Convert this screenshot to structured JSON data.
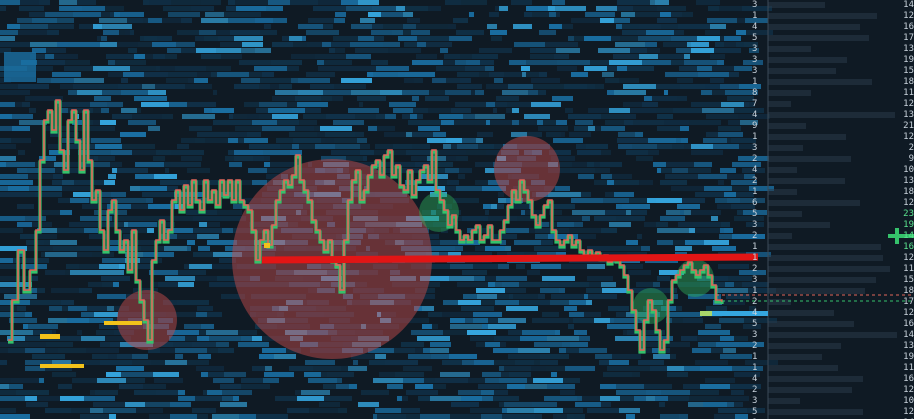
{
  "app": {
    "view": "order-book-heatmap",
    "colors": {
      "background": "#0f1a24",
      "liquidity_low": "#10324a",
      "liquidity_mid": "#1a6fa3",
      "liquidity_high": "#35a6df",
      "price_up": "#e0665a",
      "price_down": "#35c26b",
      "level_line": "#e21515",
      "sell_bubble": "#c04a4a",
      "buy_bubble": "#2fae5a",
      "resting_order": "#f2c21a"
    }
  },
  "price_ladder_left": [
    "3",
    "1",
    "4",
    "5",
    "3",
    "3",
    "3",
    "1",
    "8",
    "7",
    "4",
    "9",
    "1",
    "3",
    "2",
    "4",
    "2",
    "1",
    "6",
    "5",
    "3",
    "2",
    "1",
    "1",
    "2",
    "3",
    "1",
    "2",
    "4",
    "5",
    "3",
    "2",
    "1",
    "1",
    "4",
    "2",
    "3",
    "5",
    "1"
  ],
  "price_ladder_right": [
    "14",
    "12",
    "16",
    "17",
    "13",
    "19",
    "15",
    "18",
    "11",
    "12",
    "13",
    "21",
    "12",
    "2",
    "9",
    "10",
    "13",
    "18",
    "12",
    "23",
    "19",
    "14",
    "16",
    "12",
    "11",
    "15",
    "18",
    "17",
    "12",
    "16",
    "14",
    "13",
    "19",
    "11",
    "16",
    "12",
    "10",
    "12",
    "14"
  ],
  "bubbles": [
    {
      "type": "sell",
      "label": "large-seller-bubble"
    },
    {
      "type": "sell",
      "label": "upper-seller-bubble"
    },
    {
      "type": "sell",
      "label": "left-seller-bubble"
    },
    {
      "type": "buy",
      "label": "mid-buyer-bubble"
    },
    {
      "type": "buy",
      "label": "right-buyer-bubble"
    },
    {
      "type": "buy",
      "label": "low-buyer-bubble"
    }
  ]
}
